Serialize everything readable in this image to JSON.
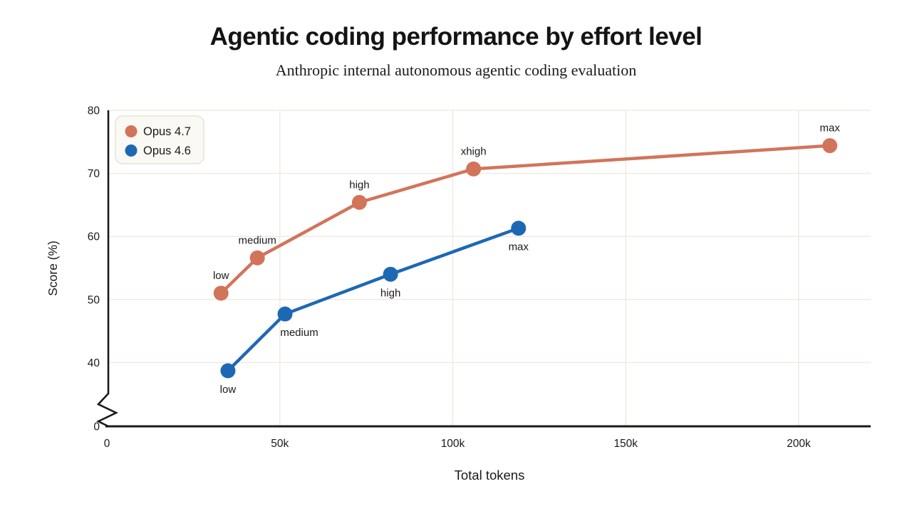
{
  "page": {
    "background": "#ffffff"
  },
  "chart_data": {
    "type": "line",
    "title": "Agentic coding performance by effort level",
    "subtitle": "Anthropic internal autonomous agentic coding evaluation",
    "xlabel": "Total tokens",
    "ylabel": "Score (%)",
    "xlim": [
      0,
      220000
    ],
    "ylim": [
      0,
      80
    ],
    "axis_break": {
      "axis": "y",
      "between": [
        0,
        40
      ]
    },
    "grid": true,
    "x_ticks": [
      {
        "value": 0,
        "label": "0"
      },
      {
        "value": 50000,
        "label": "50k"
      },
      {
        "value": 100000,
        "label": "100k"
      },
      {
        "value": 150000,
        "label": "150k"
      },
      {
        "value": 200000,
        "label": "200k"
      }
    ],
    "y_ticks": [
      {
        "value": 0,
        "label": "0"
      },
      {
        "value": 40,
        "label": "40"
      },
      {
        "value": 50,
        "label": "50"
      },
      {
        "value": 60,
        "label": "60"
      },
      {
        "value": 70,
        "label": "70"
      },
      {
        "value": 80,
        "label": "80"
      }
    ],
    "legend": {
      "position": "top-left",
      "items": [
        "Opus 4.7",
        "Opus 4.6"
      ]
    },
    "series": [
      {
        "name": "Opus 4.7",
        "color": "#D2745A",
        "label_placement": "above",
        "points": [
          {
            "x": 33000,
            "y": 51.0,
            "label": "low"
          },
          {
            "x": 43500,
            "y": 56.6,
            "label": "medium"
          },
          {
            "x": 73000,
            "y": 65.4,
            "label": "high"
          },
          {
            "x": 106000,
            "y": 70.7,
            "label": "xhigh"
          },
          {
            "x": 209000,
            "y": 74.4,
            "label": "max"
          }
        ]
      },
      {
        "name": "Opus 4.6",
        "color": "#1D68B4",
        "label_placement": "below",
        "points": [
          {
            "x": 35000,
            "y": 38.7,
            "label": "low"
          },
          {
            "x": 51500,
            "y": 47.7,
            "label": "medium",
            "label_dx": 20
          },
          {
            "x": 82000,
            "y": 54.0,
            "label": "high"
          },
          {
            "x": 119000,
            "y": 61.3,
            "label": "max"
          }
        ]
      }
    ],
    "colors": {
      "grid": "#EFEBE0",
      "axis": "#1A1A18",
      "text": "#1A1A18",
      "legend_fill": "#FAF9F4",
      "legend_border": "#E6E2D6"
    }
  }
}
